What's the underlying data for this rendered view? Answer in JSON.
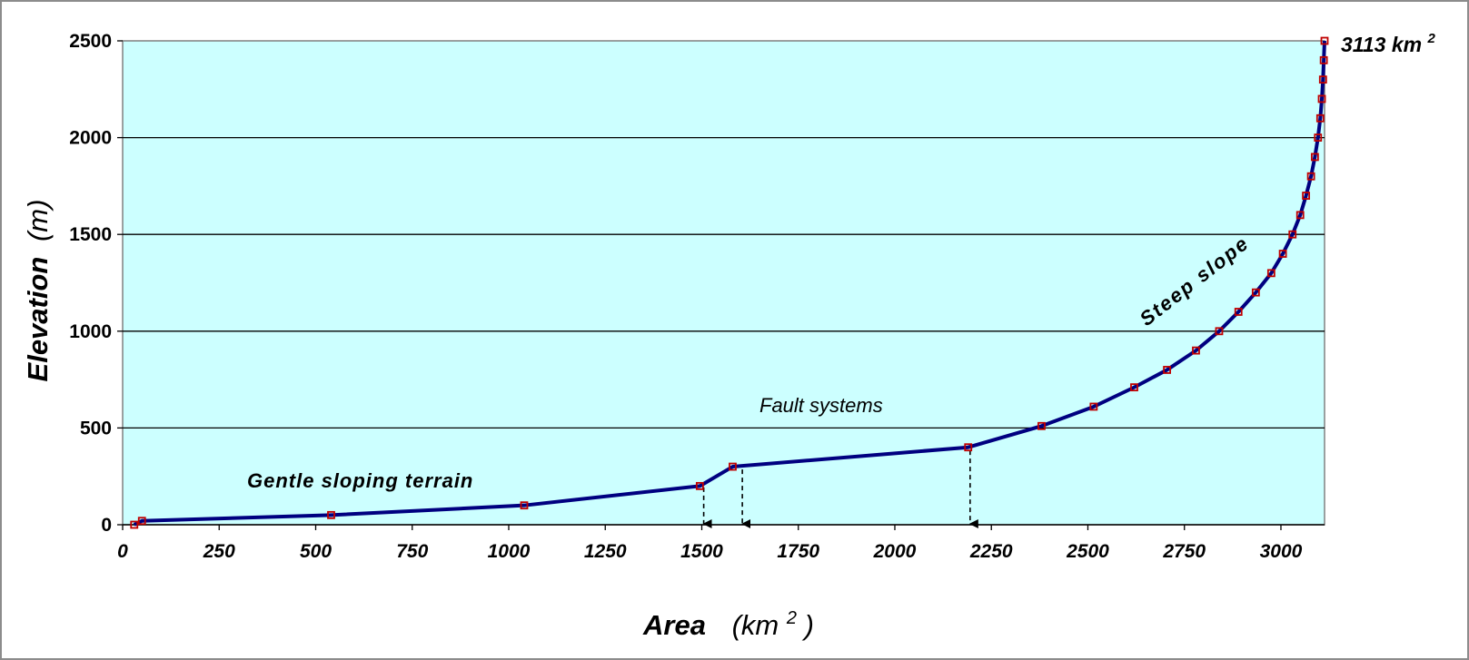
{
  "chart_data": {
    "type": "line",
    "xlabel": {
      "main": "Area",
      "unit_prefix": "(km",
      "unit_sup": "2",
      "unit_suffix": ")"
    },
    "ylabel": {
      "main": "Elevation",
      "unit": "(m)"
    },
    "xlim": [
      0,
      3113
    ],
    "ylim": [
      0,
      2500
    ],
    "xticks": [
      "0",
      "250",
      "500",
      "750",
      "1000",
      "1250",
      "1500",
      "1750",
      "2000",
      "2250",
      "2500",
      "2750",
      "3000"
    ],
    "yticks": [
      "0",
      "500",
      "1000",
      "1500",
      "2000",
      "2500"
    ],
    "grid": true,
    "plot_bg": "#ccffff",
    "line_color": "#000080",
    "marker_color": "#c00000",
    "series": [
      {
        "x": [
          30,
          50,
          540,
          1040,
          1495,
          1580,
          2190,
          2380,
          2515,
          2620,
          2705,
          2780,
          2840,
          2890,
          2935,
          2975,
          3005,
          3030,
          3050,
          3065,
          3078,
          3088,
          3096,
          3102,
          3106,
          3109,
          3111,
          3113
        ],
        "y": [
          0,
          20,
          50,
          100,
          200,
          300,
          400,
          510,
          610,
          710,
          800,
          900,
          1000,
          1100,
          1200,
          1300,
          1400,
          1500,
          1600,
          1700,
          1800,
          1900,
          2000,
          2100,
          2200,
          2300,
          2400,
          2500
        ]
      }
    ],
    "annotations": {
      "top_label": "3113 km",
      "top_label_sup": "2",
      "gentle": "Gentle sloping terrain",
      "fault": "Fault systems",
      "steep": "Steep slope"
    },
    "arrows_x": [
      1505,
      1605,
      2195
    ]
  }
}
